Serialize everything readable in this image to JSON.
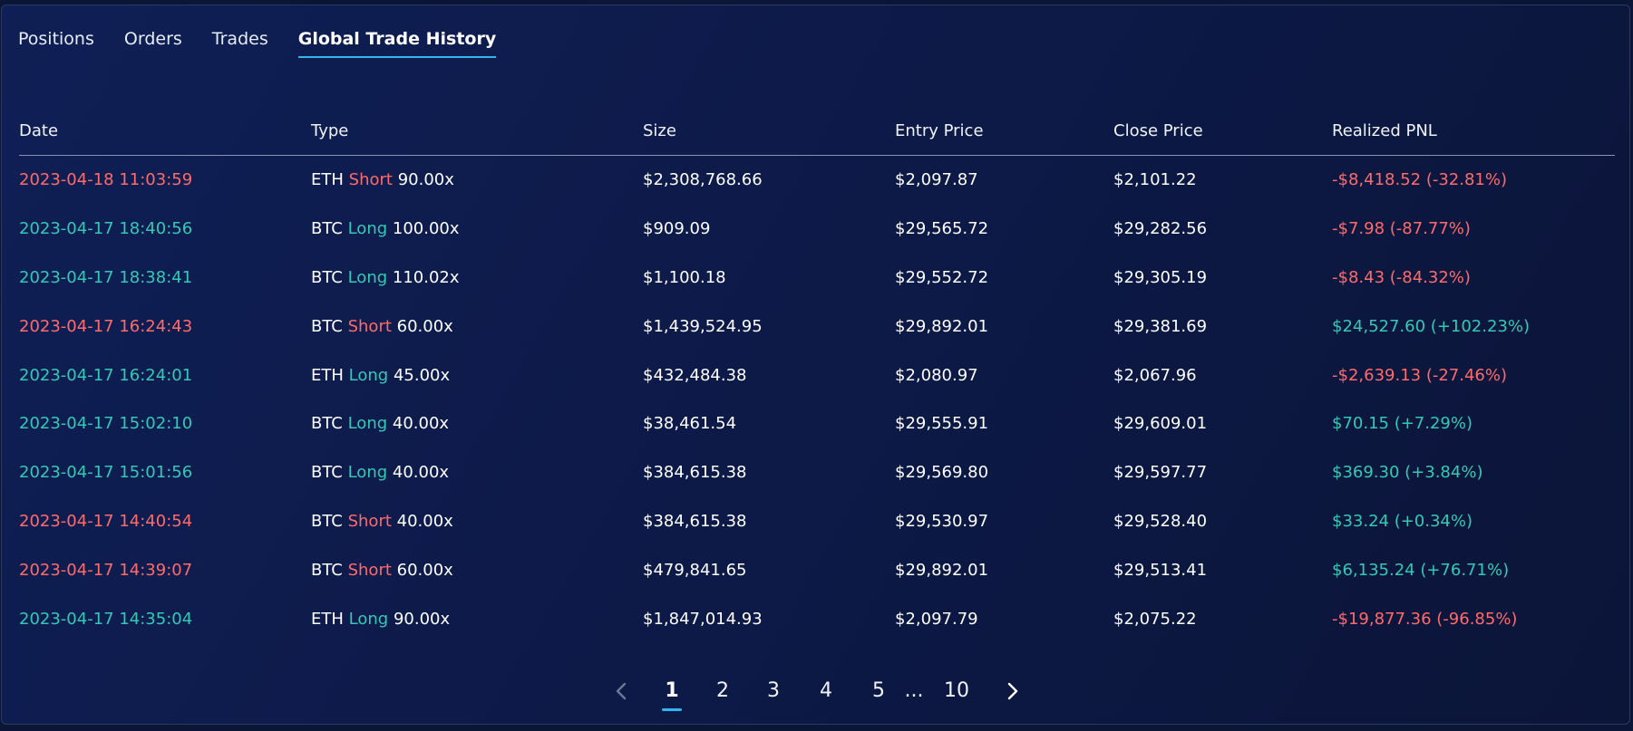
{
  "tabs": [
    {
      "label": "Positions",
      "active": false
    },
    {
      "label": "Orders",
      "active": false
    },
    {
      "label": "Trades",
      "active": false
    },
    {
      "label": "Global Trade History",
      "active": true
    }
  ],
  "columns": [
    "Date",
    "Type",
    "Size",
    "Entry Price",
    "Close Price",
    "Realized PNL"
  ],
  "rows": [
    {
      "date": "2023-04-18 11:03:59",
      "asset": "ETH",
      "side": "Short",
      "leverage": "90.00x",
      "size": "$2,308,768.66",
      "entry": "$2,097.87",
      "close": "$2,101.22",
      "pnl": "-$8,418.52 (-32.81%)",
      "pnl_positive": false
    },
    {
      "date": "2023-04-17 18:40:56",
      "asset": "BTC",
      "side": "Long",
      "leverage": "100.00x",
      "size": "$909.09",
      "entry": "$29,565.72",
      "close": "$29,282.56",
      "pnl": "-$7.98 (-87.77%)",
      "pnl_positive": false
    },
    {
      "date": "2023-04-17 18:38:41",
      "asset": "BTC",
      "side": "Long",
      "leverage": "110.02x",
      "size": "$1,100.18",
      "entry": "$29,552.72",
      "close": "$29,305.19",
      "pnl": "-$8.43 (-84.32%)",
      "pnl_positive": false
    },
    {
      "date": "2023-04-17 16:24:43",
      "asset": "BTC",
      "side": "Short",
      "leverage": "60.00x",
      "size": "$1,439,524.95",
      "entry": "$29,892.01",
      "close": "$29,381.69",
      "pnl": "$24,527.60 (+102.23%)",
      "pnl_positive": true
    },
    {
      "date": "2023-04-17 16:24:01",
      "asset": "ETH",
      "side": "Long",
      "leverage": "45.00x",
      "size": "$432,484.38",
      "entry": "$2,080.97",
      "close": "$2,067.96",
      "pnl": "-$2,639.13 (-27.46%)",
      "pnl_positive": false
    },
    {
      "date": "2023-04-17 15:02:10",
      "asset": "BTC",
      "side": "Long",
      "leverage": "40.00x",
      "size": "$38,461.54",
      "entry": "$29,555.91",
      "close": "$29,609.01",
      "pnl": "$70.15 (+7.29%)",
      "pnl_positive": true
    },
    {
      "date": "2023-04-17 15:01:56",
      "asset": "BTC",
      "side": "Long",
      "leverage": "40.00x",
      "size": "$384,615.38",
      "entry": "$29,569.80",
      "close": "$29,597.77",
      "pnl": "$369.30 (+3.84%)",
      "pnl_positive": true
    },
    {
      "date": "2023-04-17 14:40:54",
      "asset": "BTC",
      "side": "Short",
      "leverage": "40.00x",
      "size": "$384,615.38",
      "entry": "$29,530.97",
      "close": "$29,528.40",
      "pnl": "$33.24 (+0.34%)",
      "pnl_positive": true
    },
    {
      "date": "2023-04-17 14:39:07",
      "asset": "BTC",
      "side": "Short",
      "leverage": "60.00x",
      "size": "$479,841.65",
      "entry": "$29,892.01",
      "close": "$29,513.41",
      "pnl": "$6,135.24 (+76.71%)",
      "pnl_positive": true
    },
    {
      "date": "2023-04-17 14:35:04",
      "asset": "ETH",
      "side": "Long",
      "leverage": "90.00x",
      "size": "$1,847,014.93",
      "entry": "$2,097.79",
      "close": "$2,075.22",
      "pnl": "-$19,877.36 (-96.85%)",
      "pnl_positive": false
    }
  ],
  "pagination": {
    "prev_icon": "chevron-left-icon",
    "next_icon": "chevron-right-icon",
    "pages": [
      "1",
      "2",
      "3",
      "4",
      "5",
      "...",
      "10"
    ],
    "current": "1"
  },
  "colors": {
    "short": "#ff6b6b",
    "long": "#34c9b4",
    "accent": "#33b6ee",
    "background": "#0f1f55"
  }
}
